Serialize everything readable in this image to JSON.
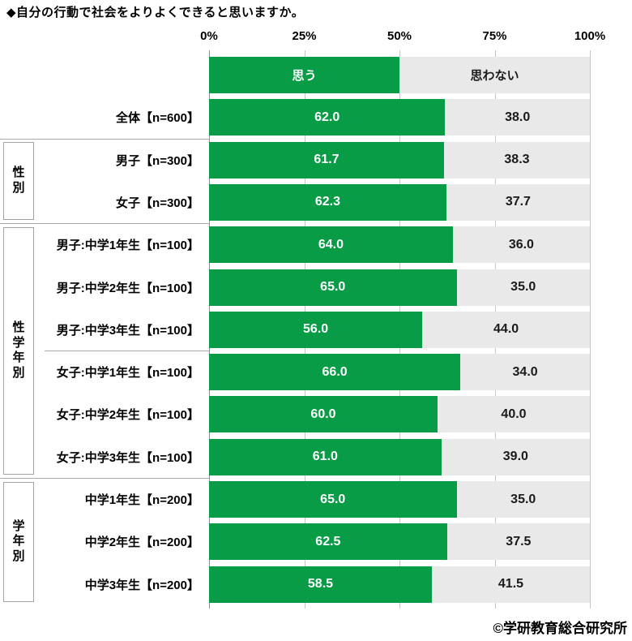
{
  "title": "◆自分の行動で社会をよりよくできると思いますか。",
  "footer": "©学研教育総合研究所",
  "colors": {
    "agree_green": "#089C47",
    "disagree_gray": "#E9E9E9",
    "agree_value_text": "#FFFFFF",
    "disagree_value_text": "#1A1A1A",
    "gridline": "#C6C6C6",
    "axis_line": "#8F8F8F"
  },
  "chart_data": {
    "type": "bar",
    "orientation": "horizontal",
    "stacked": true,
    "title": "◆自分の行動で社会をよりよくできると思いますか。",
    "xlabel": "",
    "ylabel": "",
    "xlim": [
      0,
      100
    ],
    "x_axis_ticks": [
      "0%",
      "25%",
      "50%",
      "75%",
      "100%"
    ],
    "grid": true,
    "legend_position": "top-bar",
    "legend": [
      {
        "label": "思う",
        "color": "#089C47"
      },
      {
        "label": "思わない",
        "color": "#E9E9E9"
      }
    ],
    "series_names": [
      "思う",
      "思わない"
    ],
    "rows": [
      {
        "label": "全体【n=600】",
        "agree": 62.0,
        "disagree": 38.0
      },
      {
        "label": "男子【n=300】",
        "agree": 61.7,
        "disagree": 38.3
      },
      {
        "label": "女子【n=300】",
        "agree": 62.3,
        "disagree": 37.7
      },
      {
        "label": "男子:中学1年生【n=100】",
        "agree": 64.0,
        "disagree": 36.0
      },
      {
        "label": "男子:中学2年生【n=100】",
        "agree": 65.0,
        "disagree": 35.0
      },
      {
        "label": "男子:中学3年生【n=100】",
        "agree": 56.0,
        "disagree": 44.0
      },
      {
        "label": "女子:中学1年生【n=100】",
        "agree": 66.0,
        "disagree": 34.0
      },
      {
        "label": "女子:中学2年生【n=100】",
        "agree": 60.0,
        "disagree": 40.0
      },
      {
        "label": "女子:中学3年生【n=100】",
        "agree": 61.0,
        "disagree": 39.0
      },
      {
        "label": "中学1年生【n=200】",
        "agree": 65.0,
        "disagree": 35.0
      },
      {
        "label": "中学2年生【n=200】",
        "agree": 62.5,
        "disagree": 37.5
      },
      {
        "label": "中学3年生【n=200】",
        "agree": 58.5,
        "disagree": 41.5
      }
    ],
    "groups": [
      {
        "label": "性別",
        "start": 1,
        "end": 2
      },
      {
        "label": "性学年別",
        "start": 3,
        "end": 8
      },
      {
        "label": "学年別",
        "start": 9,
        "end": 11
      }
    ],
    "separators": [
      {
        "above_row": 1,
        "full": true
      },
      {
        "above_row": 3,
        "full": true
      },
      {
        "above_row": 6,
        "full": false
      },
      {
        "above_row": 9,
        "full": true
      }
    ]
  }
}
